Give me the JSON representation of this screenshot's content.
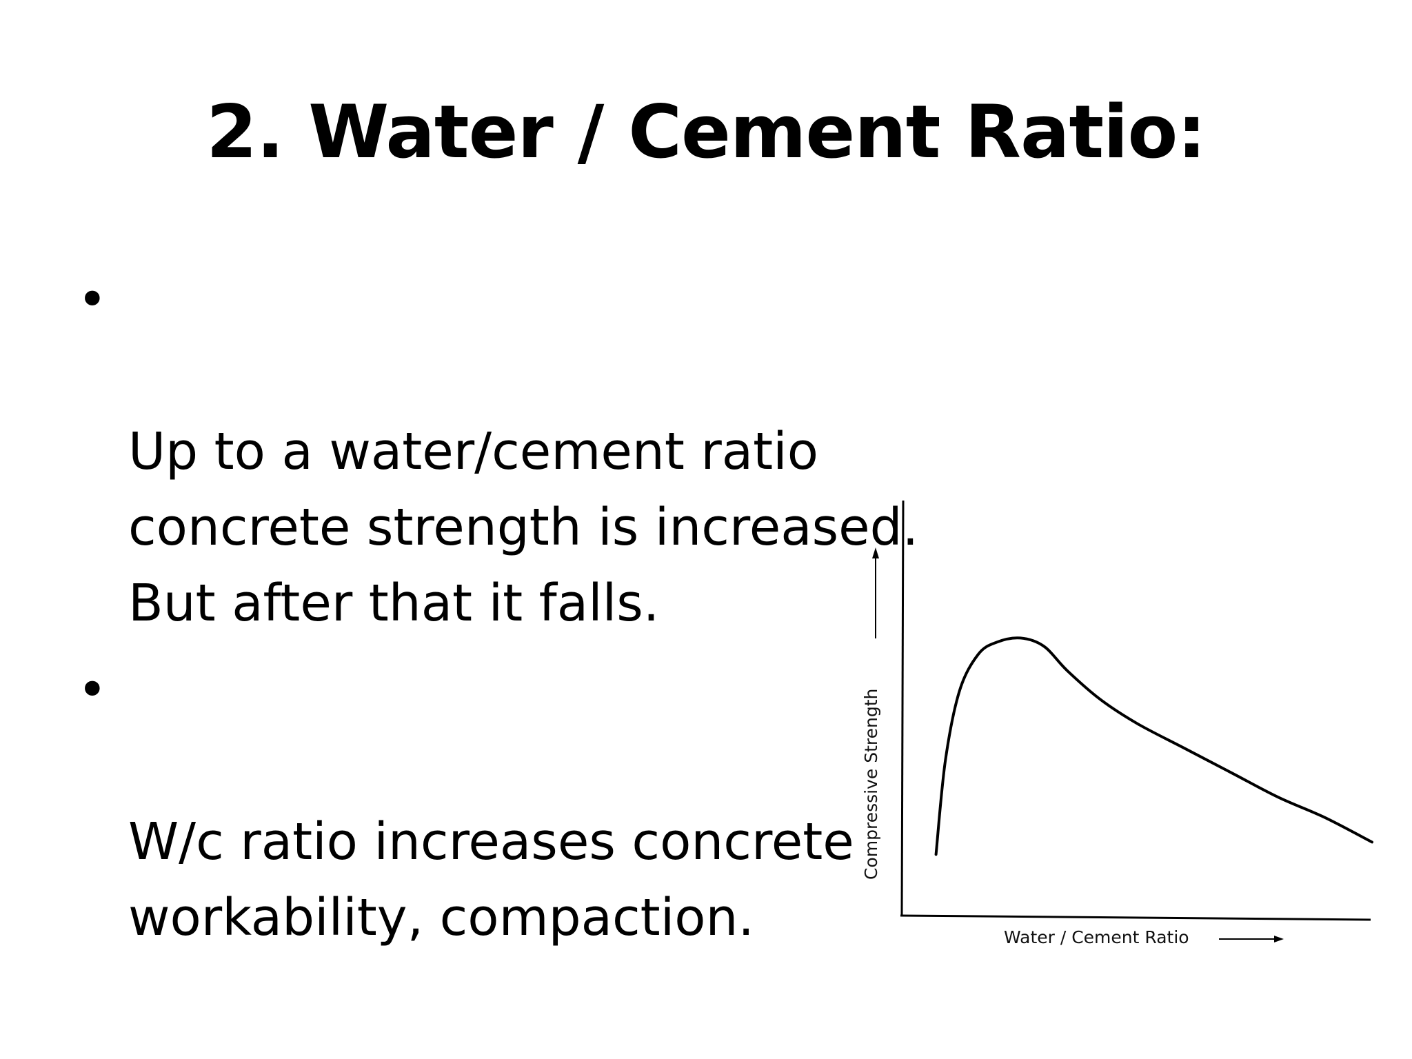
{
  "slide": {
    "title": "2. Water / Cement Ratio:",
    "bullets": [
      {
        "marker": "•",
        "text": "Up to a water/cement ratio\nconcrete strength is increased.\nBut after that it falls."
      },
      {
        "marker": "•",
        "text": "W/c ratio increases concrete\nworkability, compaction."
      }
    ]
  },
  "chart_data": {
    "type": "line",
    "title": "",
    "xlabel": "Water / Cement Ratio",
    "ylabel": "Compressive Strength",
    "x_ticks_shown": false,
    "y_ticks_shown": false,
    "grid": false,
    "xlim": [
      0,
      1
    ],
    "ylim": [
      0,
      1
    ],
    "series": [
      {
        "x": [
          0.07,
          0.09,
          0.12,
          0.16,
          0.2,
          0.25,
          0.3,
          0.35,
          0.42,
          0.5,
          0.6,
          0.7,
          0.8,
          0.9,
          1.0
        ],
        "y": [
          0.15,
          0.38,
          0.55,
          0.64,
          0.67,
          0.68,
          0.66,
          0.6,
          0.53,
          0.47,
          0.41,
          0.35,
          0.29,
          0.24,
          0.18
        ]
      }
    ],
    "line_color": "#000000"
  }
}
